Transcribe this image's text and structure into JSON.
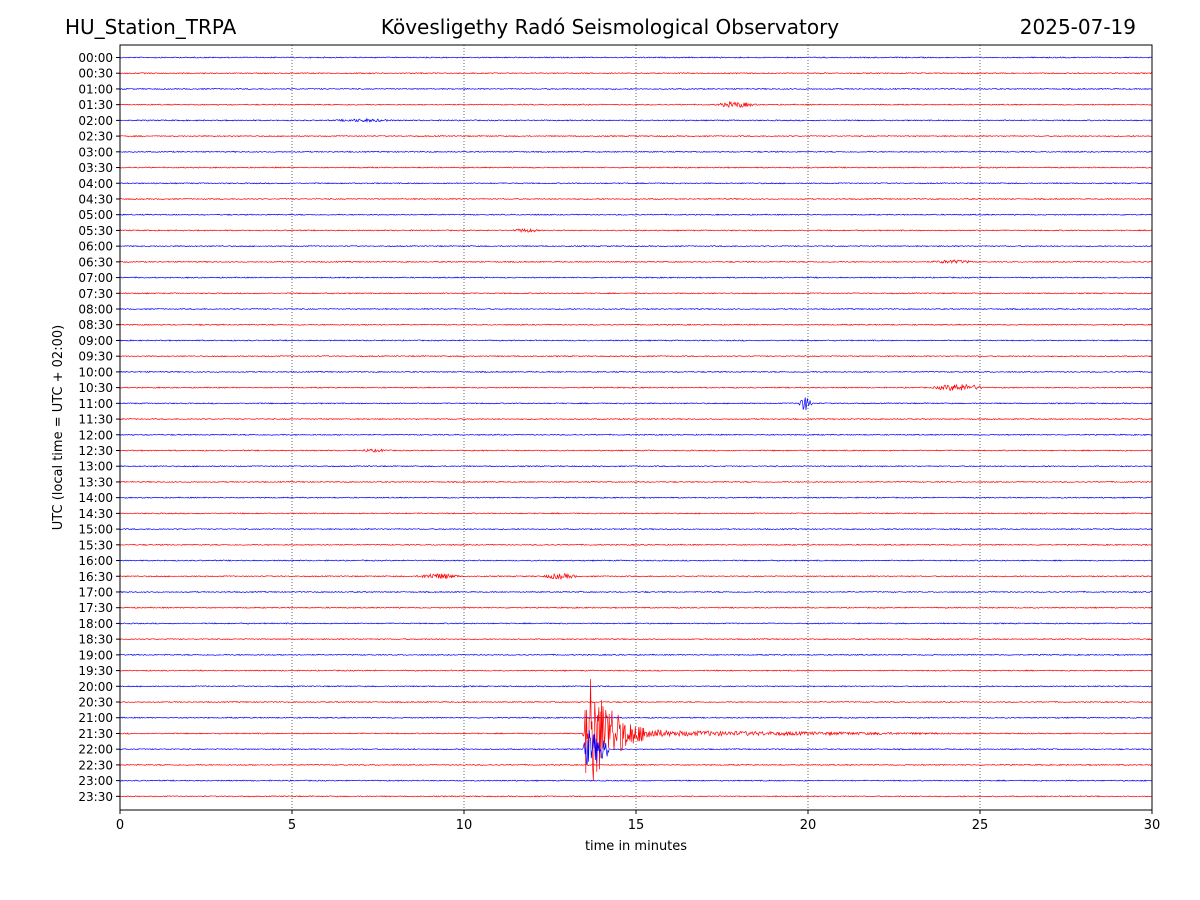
{
  "header": {
    "station": "HU_Station_TRPA",
    "observatory": "Kövesligethy Radó Seismological Observatory",
    "date": "2025-07-19"
  },
  "chart_data": {
    "type": "line",
    "title": "Kövesligethy Radó Seismological Observatory",
    "xlabel": "time in minutes",
    "ylabel": "UTC (local time = UTC + 02:00)",
    "xlim": [
      0,
      30
    ],
    "xticks": [
      "0",
      "5",
      "10",
      "15",
      "20",
      "25",
      "30"
    ],
    "grid": "vertical dotted at 5-minute intervals",
    "colors": {
      "even_rows": "#0000ff",
      "odd_rows": "#ff0000"
    },
    "rows": [
      "00:00",
      "00:30",
      "01:00",
      "01:30",
      "02:00",
      "02:30",
      "03:00",
      "03:30",
      "04:00",
      "04:30",
      "05:00",
      "05:30",
      "06:00",
      "06:30",
      "07:00",
      "07:30",
      "08:00",
      "08:30",
      "09:00",
      "09:30",
      "10:00",
      "10:30",
      "11:00",
      "11:30",
      "12:00",
      "12:30",
      "13:00",
      "13:30",
      "14:00",
      "14:30",
      "15:00",
      "15:30",
      "16:00",
      "16:30",
      "17:00",
      "17:30",
      "18:00",
      "18:30",
      "19:00",
      "19:30",
      "20:00",
      "20:30",
      "21:00",
      "21:30",
      "22:00",
      "22:30",
      "23:00",
      "23:30"
    ],
    "noise_amplitude_rows": 0.04,
    "events": [
      {
        "row": "01:30",
        "start_min": 17.2,
        "end_min": 18.6,
        "peak_amplitude_rows": 0.18,
        "shape": "burst"
      },
      {
        "row": "02:00",
        "start_min": 6.0,
        "end_min": 8.2,
        "peak_amplitude_rows": 0.1,
        "shape": "burst"
      },
      {
        "row": "05:30",
        "start_min": 11.3,
        "end_min": 12.3,
        "peak_amplitude_rows": 0.12,
        "shape": "burst"
      },
      {
        "row": "06:30",
        "start_min": 23.4,
        "end_min": 25.0,
        "peak_amplitude_rows": 0.12,
        "shape": "burst"
      },
      {
        "row": "10:30",
        "start_min": 23.5,
        "end_min": 25.3,
        "peak_amplitude_rows": 0.22,
        "shape": "burst"
      },
      {
        "row": "11:00",
        "start_min": 19.7,
        "end_min": 20.15,
        "peak_amplitude_rows": 0.45,
        "shape": "spindle"
      },
      {
        "row": "12:30",
        "start_min": 6.8,
        "end_min": 8.0,
        "peak_amplitude_rows": 0.1,
        "shape": "burst"
      },
      {
        "row": "16:30",
        "start_min": 8.5,
        "end_min": 10.0,
        "peak_amplitude_rows": 0.18,
        "shape": "burst"
      },
      {
        "row": "16:30",
        "start_min": 12.2,
        "end_min": 13.4,
        "peak_amplitude_rows": 0.18,
        "shape": "burst"
      },
      {
        "row": "21:30",
        "start_min": 13.45,
        "end_min": 27.0,
        "peak_amplitude_rows": 4.2,
        "shape": "earthquake"
      },
      {
        "row": "22:00",
        "start_min": 13.45,
        "end_min": 14.2,
        "peak_amplitude_rows": 1.3,
        "shape": "earthquake"
      }
    ]
  }
}
